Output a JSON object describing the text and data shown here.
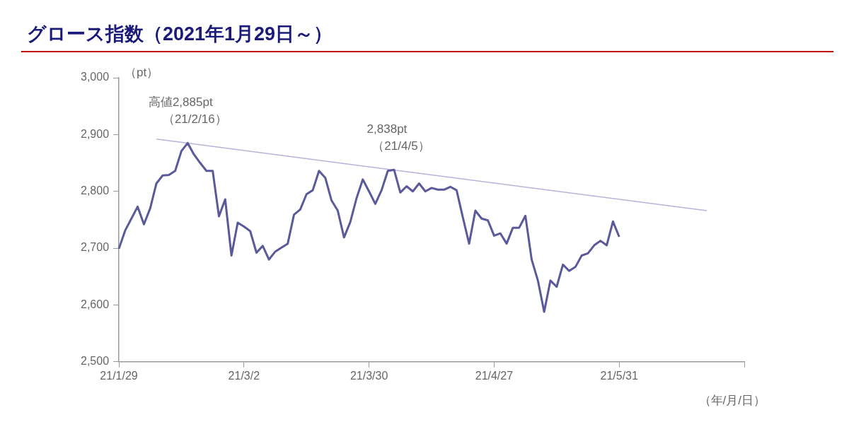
{
  "chart_data": {
    "type": "line",
    "title": "グロース指数（2021年1月29日～）",
    "ylabel": "（pt）",
    "xlabel": "（年/月/日）",
    "categories": [
      "21/1/29",
      null,
      null,
      null,
      null,
      null,
      null,
      null,
      null,
      null,
      null,
      null,
      null,
      null,
      null,
      null,
      null,
      null,
      null,
      null,
      "21/3/2",
      null,
      null,
      null,
      null,
      null,
      null,
      null,
      null,
      null,
      null,
      null,
      null,
      null,
      null,
      null,
      null,
      null,
      null,
      null,
      "21/3/30",
      null,
      null,
      null,
      null,
      null,
      null,
      null,
      null,
      null,
      null,
      null,
      null,
      null,
      null,
      null,
      null,
      null,
      null,
      null,
      "21/4/27",
      null,
      null,
      null,
      null,
      null,
      null,
      null,
      null,
      null,
      null,
      null,
      null,
      null,
      null,
      null,
      null,
      null,
      null,
      null,
      "21/5/31",
      null,
      null,
      null,
      null,
      null,
      null,
      null,
      null,
      null,
      null,
      null,
      null,
      null,
      null,
      null,
      null,
      null,
      null,
      null,
      null
    ],
    "series": [
      {
        "color": "#5a5a9a",
        "values": [
          2699,
          2731,
          2752,
          2773,
          2742,
          2770,
          2814,
          2828,
          2829,
          2836,
          2871,
          2885,
          2865,
          2850,
          2836,
          2836,
          2756,
          2786,
          2687,
          2745,
          2738,
          2730,
          2692,
          2704,
          2680,
          2694,
          2701,
          2708,
          2759,
          2768,
          2795,
          2802,
          2836,
          2824,
          2784,
          2766,
          2719,
          2746,
          2788,
          2821,
          2800,
          2778,
          2802,
          2836,
          2838,
          2798,
          2809,
          2800,
          2814,
          2800,
          2806,
          2803,
          2803,
          2808,
          2802,
          2754,
          2708,
          2766,
          2752,
          2749,
          2722,
          2726,
          2708,
          2736,
          2736,
          2757,
          2680,
          2643,
          2588,
          2643,
          2632,
          2671,
          2660,
          2667,
          2687,
          2691,
          2705,
          2713,
          2705,
          2747,
          2720,
          null,
          null,
          null,
          null,
          null,
          null,
          null,
          null,
          null,
          null,
          null,
          null,
          null,
          null,
          null,
          null,
          null,
          null,
          null,
          null
        ]
      },
      {
        "type": "line",
        "color": "#b4b4d8",
        "values": [
          null,
          null,
          null,
          null,
          null,
          null,
          2892,
          null,
          null,
          null,
          null,
          null,
          null,
          null,
          null,
          null,
          null,
          null,
          null,
          null,
          null,
          null,
          null,
          null,
          null,
          null,
          null,
          null,
          null,
          null,
          null,
          null,
          null,
          null,
          null,
          null,
          null,
          null,
          null,
          null,
          null,
          null,
          null,
          null,
          null,
          null,
          null,
          null,
          null,
          null,
          null,
          null,
          null,
          null,
          null,
          null,
          null,
          null,
          null,
          null,
          null,
          null,
          null,
          null,
          null,
          null,
          null,
          null,
          null,
          null,
          null,
          null,
          null,
          null,
          null,
          null,
          null,
          null,
          null,
          null,
          null,
          null,
          null,
          null,
          null,
          null,
          null,
          null,
          null,
          null,
          null,
          null,
          null,
          null,
          2766,
          null,
          null,
          null,
          null,
          null,
          null
        ]
      }
    ],
    "ylim": [
      2500,
      3000
    ],
    "yticks": [
      {
        "value": 2500,
        "label": "2,500"
      },
      {
        "value": 2600,
        "label": "2,600"
      },
      {
        "value": 2700,
        "label": "2,700"
      },
      {
        "value": 2800,
        "label": "2,800"
      },
      {
        "value": 2900,
        "label": "2,900"
      },
      {
        "value": 3000,
        "label": "3,000"
      }
    ],
    "grid": false,
    "legend": false,
    "marker": "none",
    "line_style": "solid",
    "annotations": [
      {
        "text": "高値2,885pt\n（21/2/16）",
        "y": 2885
      },
      {
        "text": "2,838pt\n（21/4/5）",
        "y": 2838
      }
    ]
  }
}
